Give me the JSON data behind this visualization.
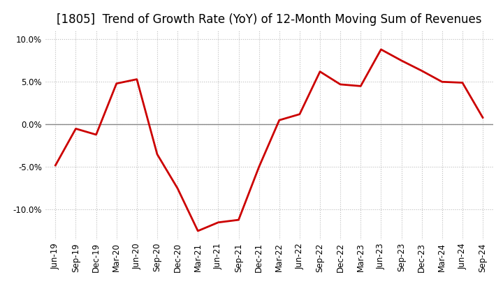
{
  "title": "[1805]  Trend of Growth Rate (YoY) of 12-Month Moving Sum of Revenues",
  "x_labels": [
    "Jun-19",
    "Sep-19",
    "Dec-19",
    "Mar-20",
    "Jun-20",
    "Sep-20",
    "Dec-20",
    "Mar-21",
    "Jun-21",
    "Sep-21",
    "Dec-21",
    "Mar-22",
    "Jun-22",
    "Sep-22",
    "Dec-22",
    "Mar-23",
    "Jun-23",
    "Sep-23",
    "Dec-23",
    "Mar-24",
    "Jun-24",
    "Sep-24"
  ],
  "y_values": [
    -4.8,
    -0.5,
    -1.2,
    4.8,
    5.3,
    -3.5,
    -7.5,
    -12.5,
    -11.5,
    -11.2,
    -5.0,
    0.5,
    1.2,
    6.2,
    4.7,
    4.5,
    8.8,
    7.5,
    6.3,
    5.0,
    4.9,
    0.8
  ],
  "line_color": "#cc0000",
  "line_width": 2.0,
  "ylim": [
    -13.5,
    11.0
  ],
  "yticks": [
    -10.0,
    -5.0,
    0.0,
    5.0,
    10.0
  ],
  "ytick_labels": [
    "-10.0%",
    "-5.0%",
    "0.0%",
    "5.0%",
    "10.0%"
  ],
  "grid_color": "#bbbbbb",
  "background_color": "#ffffff",
  "title_fontsize": 12,
  "tick_fontsize": 8.5
}
